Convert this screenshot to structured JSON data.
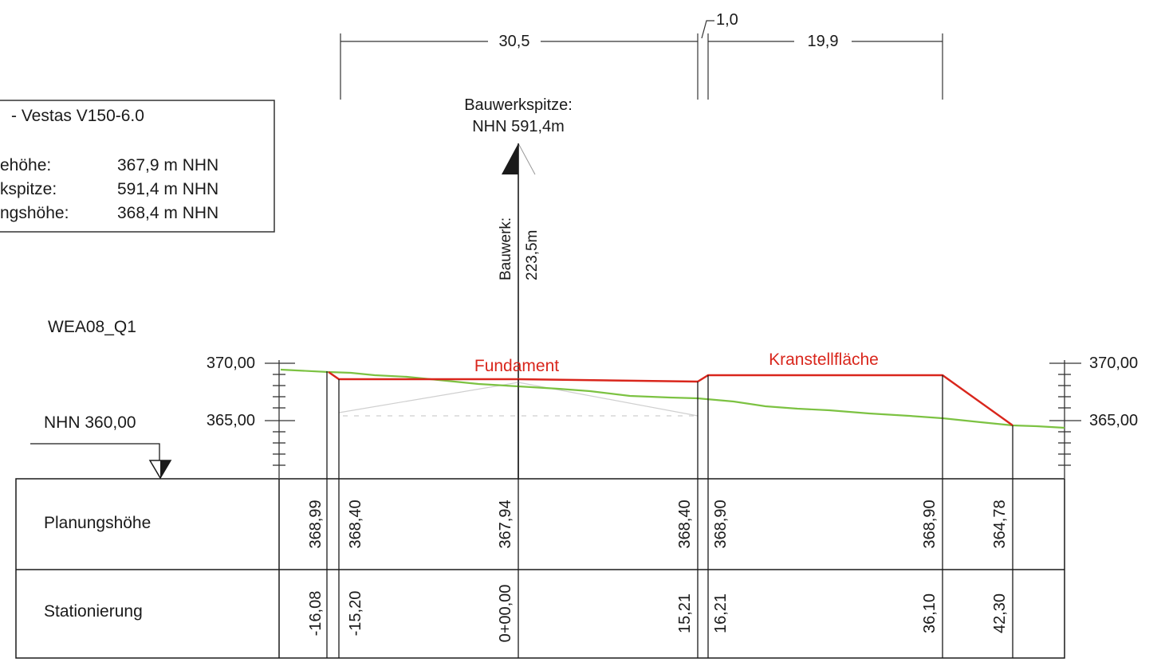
{
  "dimensions": {
    "left": "30,5",
    "middle": "1,0",
    "right": "19,9"
  },
  "infobox": {
    "title": "- Vestas V150-6.0",
    "rows": [
      {
        "label": "ehöhe:",
        "value": "367,9 m NHN"
      },
      {
        "label": "kspitze:",
        "value": "591,4 m NHN"
      },
      {
        "label": "ngshöhe:",
        "value": "368,4 m NHN"
      }
    ]
  },
  "tower": {
    "top_label_1": "Bauwerkspitze:",
    "top_label_2": "NHN 591,4m",
    "vert_label_1": "Bauwerk:",
    "vert_label_2": "223,5m"
  },
  "profile_id": "WEA08_Q1",
  "datum_label": "NHN 360,00",
  "scale": {
    "top_left": "370,00",
    "mid_left": "365,00",
    "top_right": "370,00",
    "mid_right": "365,00"
  },
  "zones": {
    "foundation": "Fundament",
    "crane_pad": "Kranstellfläche"
  },
  "table": {
    "row1_label": "Planungshöhe",
    "row2_label": "Stationierung",
    "columns": [
      {
        "planung": "368,99",
        "station": "-16,08"
      },
      {
        "planung": "368,40",
        "station": "-15,20"
      },
      {
        "planung": "367,94",
        "station": "0+00,00"
      },
      {
        "planung": "368,40",
        "station": "15,21"
      },
      {
        "planung": "368,90",
        "station": "16,21"
      },
      {
        "planung": "368,90",
        "station": "36,10"
      },
      {
        "planung": "364,78",
        "station": "42,30"
      }
    ]
  },
  "colors": {
    "design_line": "#d9261c",
    "terrain_line": "#7cc242",
    "ink": "#1a1a1a"
  }
}
